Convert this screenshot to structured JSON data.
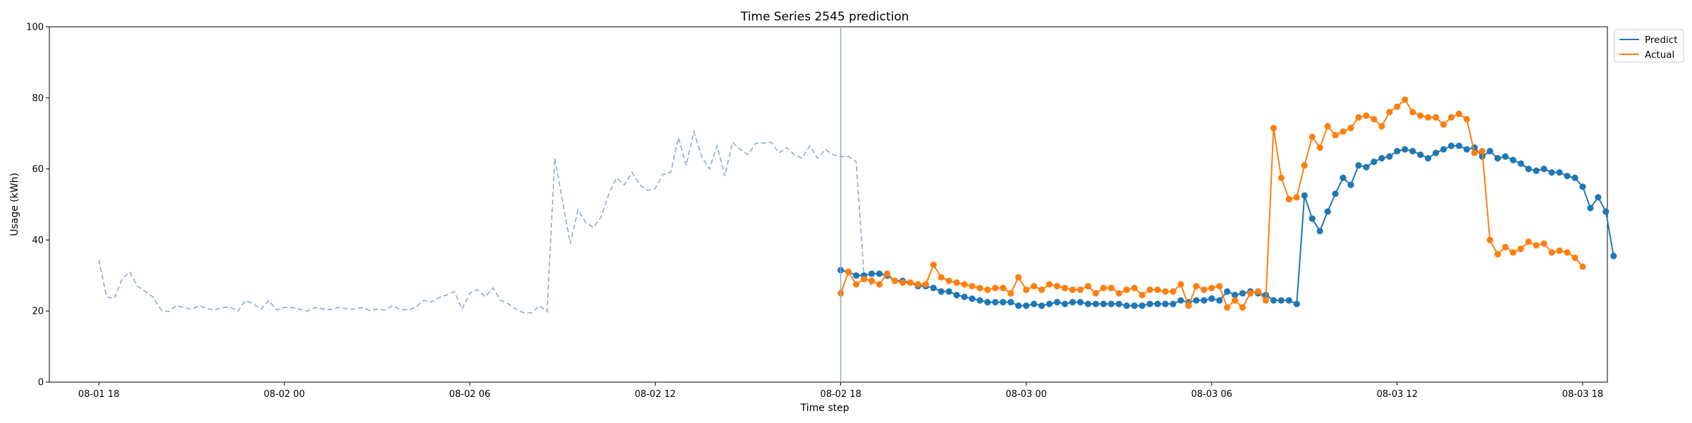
{
  "chart_data": {
    "type": "line",
    "title": "Time Series 2545 prediction",
    "xlabel": "Time step",
    "ylabel": "Usage (kWh)",
    "ylim": [
      0,
      100
    ],
    "yticks": [
      0,
      20,
      40,
      60,
      80,
      100
    ],
    "x_unit": "hours",
    "x_start": "08-01 18",
    "x_end": "08-03 18",
    "xlim": [
      -1.6,
      48.8
    ],
    "xticks": [
      {
        "x": 0,
        "label": "08-01 18"
      },
      {
        "x": 6,
        "label": "08-02 00"
      },
      {
        "x": 12,
        "label": "08-02 06"
      },
      {
        "x": 18,
        "label": "08-02 12"
      },
      {
        "x": 24,
        "label": "08-02 18"
      },
      {
        "x": 30,
        "label": "08-03 00"
      },
      {
        "x": 36,
        "label": "08-03 06"
      },
      {
        "x": 42,
        "label": "08-03 12"
      },
      {
        "x": 48,
        "label": "08-03 18"
      }
    ],
    "forecast_start": "08-02 18",
    "step": 0.25,
    "colors": {
      "history": "#8faacc",
      "predict": "#1f77b4",
      "actual": "#ff7f0e",
      "divider": "#8faacc"
    },
    "legend": {
      "position": "top-right outside"
    },
    "history": {
      "start": "08-01 18",
      "values": [
        34.5,
        24,
        23.5,
        29,
        31,
        27,
        25.5,
        24,
        20.5,
        19.8,
        21.5,
        21,
        20.5,
        21.5,
        20.7,
        20.3,
        21,
        21.1,
        20,
        23,
        22,
        20.5,
        23,
        20.3,
        21,
        21,
        20.5,
        20,
        21,
        20.6,
        20.4,
        21,
        20.7,
        20.5,
        21,
        20.2,
        20.5,
        20.3,
        21.5,
        20.5,
        20.3,
        21,
        23,
        22.5,
        23.8,
        24.5,
        25.5,
        20.5,
        25,
        26,
        24,
        26.5,
        23,
        22,
        20.5,
        19.5,
        19.5,
        21.5,
        19.8,
        63,
        51,
        39,
        48.5,
        45,
        43.5,
        46.5,
        53,
        57.5,
        55.5,
        59,
        55.5,
        54,
        54.5,
        58.5,
        59,
        68.8,
        61,
        70.5,
        63.5,
        60,
        66.5,
        58,
        67.5,
        65.5,
        64,
        67.2,
        67.3,
        67.5,
        64.5,
        66,
        64,
        63,
        66.5,
        63,
        65.5,
        64,
        63.5,
        63.5,
        62,
        30.5,
        27
      ]
    },
    "series": [
      {
        "name": "Predict",
        "start": "08-02 18",
        "values": [
          31.5,
          31,
          30,
          30,
          30.5,
          30.5,
          30,
          28.5,
          28.5,
          28,
          27,
          27,
          26.5,
          25.5,
          25.5,
          24.5,
          24,
          23.5,
          23,
          22.5,
          22.5,
          22.5,
          22.5,
          21.5,
          21.5,
          22,
          21.5,
          22,
          22.5,
          22,
          22.5,
          22.5,
          22,
          22,
          22,
          22,
          22,
          21.5,
          21.5,
          21.5,
          22,
          22,
          22,
          22,
          23,
          22.5,
          23,
          23,
          23.5,
          23,
          25.5,
          24.5,
          25,
          25.5,
          25,
          24.5,
          23,
          23,
          23,
          22,
          52.5,
          46,
          42.5,
          48,
          53,
          57.5,
          55.5,
          61,
          60.5,
          62,
          63,
          63.5,
          65,
          65.5,
          65,
          64,
          63,
          64.5,
          65.5,
          66.5,
          66.5,
          65.5,
          66,
          63.5,
          65,
          63,
          63.5,
          62.5,
          61.5,
          60,
          59.5,
          60,
          59,
          59,
          58,
          57.5,
          55,
          49,
          52,
          48,
          35.5
        ]
      },
      {
        "name": "Actual",
        "start": "08-02 18",
        "values": [
          25,
          31,
          27.5,
          29,
          28.5,
          27.5,
          30.5,
          28.5,
          28,
          28,
          27.5,
          27.5,
          33,
          29.5,
          28.5,
          28,
          27.5,
          27,
          26.5,
          26,
          26.5,
          26.5,
          25,
          29.5,
          26,
          27,
          26,
          27.5,
          27,
          26.5,
          26,
          26,
          27,
          25,
          26.5,
          26.5,
          25,
          26,
          26.5,
          24.5,
          26,
          26,
          25.5,
          25.5,
          27.5,
          21.5,
          27,
          26,
          26.5,
          27,
          21,
          23,
          21,
          25,
          25.5,
          23,
          71.5,
          57.5,
          51.5,
          52,
          61,
          69,
          66,
          72,
          69.5,
          70.5,
          71.5,
          74.5,
          75,
          74,
          72,
          76,
          77.5,
          79.5,
          76,
          75,
          74.5,
          74.5,
          72.5,
          74.5,
          75.5,
          74,
          64.5,
          65,
          40,
          36,
          38,
          36.5,
          37.5,
          39.5,
          38.5,
          39,
          36.5,
          37,
          36.5,
          35,
          32.5
        ]
      }
    ]
  }
}
